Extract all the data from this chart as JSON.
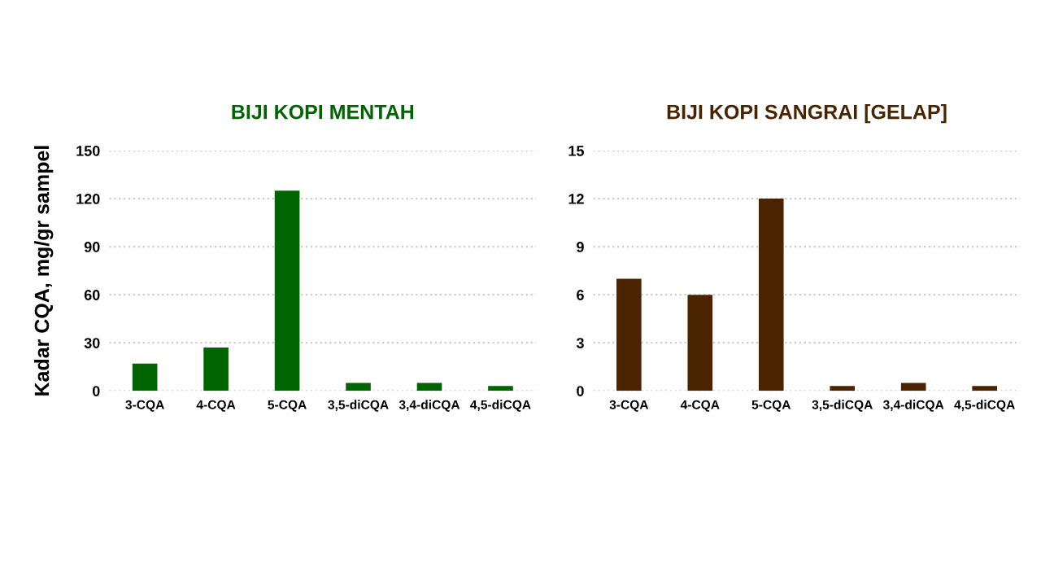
{
  "chart_data": [
    {
      "type": "bar",
      "title": "BIJI KOPI MENTAH",
      "ylabel": "Kadar CQA, mg/gr sampel",
      "categories": [
        "3-CQA",
        "4-CQA",
        "5-CQA",
        "3,5-diCQA",
        "3,4-diCQA",
        "4,5-diCQA"
      ],
      "series": [
        {
          "color": "#006400",
          "values": [
            17,
            27,
            125,
            5,
            5,
            3
          ]
        }
      ],
      "ylim": [
        0,
        150
      ],
      "yticks": [
        0,
        30,
        60,
        90,
        120,
        150
      ],
      "grid": "y"
    },
    {
      "type": "bar",
      "title": "BIJI KOPI SANGRAI [GELAP]",
      "categories": [
        "3-CQA",
        "4-CQA",
        "5-CQA",
        "3,5-diCQA",
        "3,4-diCQA",
        "4,5-diCQA"
      ],
      "series": [
        {
          "color": "#4a2300",
          "values": [
            7,
            6,
            12,
            0.3,
            0.5,
            0.3
          ]
        }
      ],
      "ylim": [
        0,
        15
      ],
      "yticks": [
        0,
        3,
        6,
        9,
        12,
        15
      ],
      "grid": "y"
    }
  ]
}
